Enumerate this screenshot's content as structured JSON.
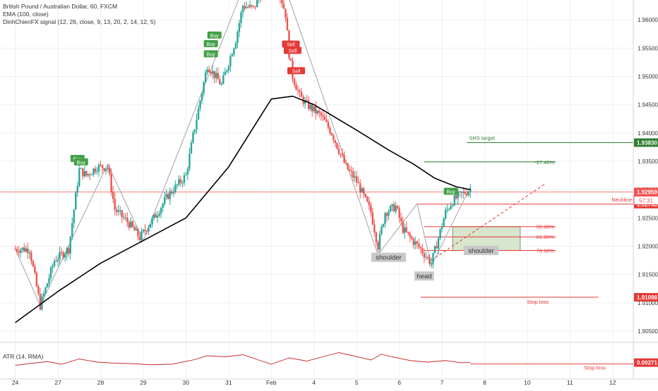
{
  "header": {
    "symbol_line": "British Pound / Australian Dollar, 60, FXCM",
    "indicator_ema": "EMA (100, close)",
    "indicator_signal": "DinhChienFX signal (12, 26, close, 9, 13, 20, 2, 14, 12, 5)",
    "indicator_atr": "ATR (14, RMA)"
  },
  "colors": {
    "bull": "#26a69a",
    "bear": "#ef5350",
    "ema": "#000000",
    "pattern_line": "#b0b0b0",
    "target": "#2e7d32",
    "stop": "#e53935",
    "current": "#ef5350",
    "neckline": "#e53935",
    "entry_zone": "#d7e6cc",
    "buy_label": "#43a047",
    "sell_label": "#e53935"
  },
  "chart_data": {
    "type": "candlestick",
    "x_ticks": [
      {
        "label": "24",
        "x": 0
      },
      {
        "label": "27",
        "x": 24
      },
      {
        "label": "28",
        "x": 48
      },
      {
        "label": "29",
        "x": 72
      },
      {
        "label": "30",
        "x": 96
      },
      {
        "label": "31",
        "x": 120
      },
      {
        "label": "Feb",
        "x": 144
      },
      {
        "label": "4",
        "x": 168
      },
      {
        "label": "5",
        "x": 192
      },
      {
        "label": "6",
        "x": 216
      },
      {
        "label": "7",
        "x": 240
      },
      {
        "label": "8",
        "x": 264
      },
      {
        "label": "10",
        "x": 288
      },
      {
        "label": "11",
        "x": 312
      },
      {
        "label": "12",
        "x": 336
      }
    ],
    "x_range": [
      -8.6,
      347.6
    ],
    "price_axis": {
      "range": [
        1.9035,
        1.9635
      ],
      "ticks": [
        "1.90500",
        "1.91000",
        "1.91500",
        "1.92000",
        "1.92500",
        "1.93000",
        "1.93500",
        "1.94000",
        "1.94500",
        "1.95000",
        "1.95500",
        "1.96000"
      ]
    },
    "price_path": [
      [
        0,
        1.9195
      ],
      [
        8,
        1.9195
      ],
      [
        14,
        1.9095
      ],
      [
        22,
        1.9175
      ],
      [
        30,
        1.9195
      ],
      [
        36,
        1.9335
      ],
      [
        40,
        1.9325
      ],
      [
        46,
        1.934
      ],
      [
        52,
        1.934
      ],
      [
        56,
        1.9265
      ],
      [
        64,
        1.924
      ],
      [
        70,
        1.9215
      ],
      [
        78,
        1.925
      ],
      [
        86,
        1.929
      ],
      [
        96,
        1.9325
      ],
      [
        100,
        1.9395
      ],
      [
        108,
        1.952
      ],
      [
        116,
        1.9485
      ],
      [
        124,
        1.9565
      ],
      [
        128,
        1.9625
      ],
      [
        134,
        1.962
      ],
      [
        140,
        1.9655
      ],
      [
        148,
        1.9655
      ],
      [
        152,
        1.961
      ],
      [
        154,
        1.954
      ],
      [
        156,
        1.95
      ],
      [
        160,
        1.9465
      ],
      [
        164,
        1.945
      ],
      [
        172,
        1.943
      ],
      [
        178,
        1.94
      ],
      [
        186,
        1.934
      ],
      [
        192,
        1.9315
      ],
      [
        200,
        1.926
      ],
      [
        204,
        1.92
      ],
      [
        208,
        1.926
      ],
      [
        214,
        1.927
      ],
      [
        218,
        1.923
      ],
      [
        222,
        1.9215
      ],
      [
        228,
        1.9195
      ],
      [
        234,
        1.917
      ],
      [
        238,
        1.9215
      ],
      [
        242,
        1.926
      ],
      [
        246,
        1.928
      ],
      [
        250,
        1.929
      ],
      [
        256,
        1.93
      ]
    ],
    "ema_path": [
      [
        0,
        1.9065
      ],
      [
        24,
        1.912
      ],
      [
        48,
        1.917
      ],
      [
        72,
        1.921
      ],
      [
        96,
        1.925
      ],
      [
        120,
        1.934
      ],
      [
        136,
        1.942
      ],
      [
        144,
        1.946
      ],
      [
        156,
        1.9465
      ],
      [
        168,
        1.945
      ],
      [
        192,
        1.9405
      ],
      [
        210,
        1.937
      ],
      [
        224,
        1.9345
      ],
      [
        236,
        1.932
      ],
      [
        248,
        1.9305
      ],
      [
        256,
        1.93
      ]
    ],
    "pattern_zigzag": [
      [
        0,
        1.9195
      ],
      [
        14,
        1.9095
      ],
      [
        52,
        1.9345
      ],
      [
        72,
        1.921
      ],
      [
        128,
        1.9655
      ],
      [
        152,
        1.9655
      ],
      [
        204,
        1.9185
      ],
      [
        226,
        1.9275
      ],
      [
        234,
        1.9165
      ],
      [
        256,
        1.9305
      ]
    ],
    "neckline_dashed": [
      [
        234,
        1.9175
      ],
      [
        298,
        1.931
      ]
    ],
    "horizontal_levels": [
      {
        "name": "shs-target",
        "label": "SHS target",
        "price": 1.9383,
        "price_label": "1.93830",
        "x_from": 254,
        "color": "#2e7d32",
        "text_color": "#2e7d32"
      },
      {
        "name": "fib-27",
        "label": "-27.40%",
        "price": 1.9349,
        "x_from": 230,
        "x_to": 304,
        "color": "#2e7d32",
        "text_color": "#2e7d32"
      },
      {
        "name": "current-price",
        "label": "",
        "price": 1.92959,
        "price_label": "1.92959",
        "x_from": -9,
        "color": "#ef5350",
        "thin": true
      },
      {
        "name": "neckline",
        "label": "Neckline",
        "price": 1.92743,
        "price_label": "1.92743",
        "x_from": 226,
        "color": "#e53935",
        "text_color": "#e53935"
      },
      {
        "name": "fib-50",
        "label": "50.00%",
        "price": 1.92345,
        "x_from": 230,
        "x_to": 304,
        "color": "#e53935",
        "text_color": "#e53935"
      },
      {
        "name": "fib-618",
        "label": "61.80%",
        "price": 1.92165,
        "x_from": 230,
        "x_to": 304,
        "color": "#e53935",
        "text_color": "#e53935"
      },
      {
        "name": "fib-786",
        "label": "78.60%",
        "price": 1.91925,
        "x_from": 230,
        "x_to": 304,
        "color": "#e53935",
        "text_color": "#e53935"
      },
      {
        "name": "stop-loss",
        "label": "Stop loss",
        "price": 1.91098,
        "price_label": "1.91098",
        "x_from": 228,
        "x_to": 328,
        "color": "#e53935",
        "text_color": "#e53935"
      }
    ],
    "countdown_label": "57:31",
    "entry_zone": {
      "x_from": 246,
      "x_to": 284,
      "price_top": 1.92345,
      "price_bottom": 1.91925
    },
    "pattern_labels": [
      {
        "name": "left-shoulder",
        "text": "shoulder",
        "x": 210,
        "price": 1.9181
      },
      {
        "name": "head",
        "text": "head",
        "x": 230,
        "price": 1.9148
      },
      {
        "name": "right-shoulder",
        "text": "shoulder",
        "x": 262,
        "price": 1.9193
      }
    ],
    "signals": [
      {
        "text": "Buy",
        "type": "buy",
        "x": 35,
        "price": 1.9355
      },
      {
        "text": "Buy",
        "type": "buy",
        "x": 37,
        "price": 1.9349
      },
      {
        "text": "Buy",
        "type": "buy",
        "x": 112,
        "price": 1.9573
      },
      {
        "text": "Buy",
        "type": "buy",
        "x": 110,
        "price": 1.9558
      },
      {
        "text": "Buy",
        "type": "buy",
        "x": 110,
        "price": 1.954
      },
      {
        "text": "Sell",
        "type": "sell",
        "x": 154,
        "price": 1.9642
      },
      {
        "text": "Sell",
        "type": "sell",
        "x": 155,
        "price": 1.9557
      },
      {
        "text": "Sell",
        "type": "sell",
        "x": 156,
        "price": 1.9546
      },
      {
        "text": "Sell",
        "type": "sell",
        "x": 158,
        "price": 1.951
      },
      {
        "text": "Buy",
        "type": "buy",
        "x": 245,
        "price": 1.9297
      }
    ],
    "atr": {
      "range": [
        0,
        0.006
      ],
      "value_label": "0.00271",
      "stop_label": "Stop loss",
      "stop_value": 0.00245,
      "path": [
        [
          0,
          0.0022
        ],
        [
          10,
          0.0026
        ],
        [
          18,
          0.0029
        ],
        [
          26,
          0.0024
        ],
        [
          36,
          0.0034
        ],
        [
          46,
          0.0028
        ],
        [
          56,
          0.0026
        ],
        [
          66,
          0.0025
        ],
        [
          76,
          0.0023
        ],
        [
          88,
          0.0024
        ],
        [
          100,
          0.0032
        ],
        [
          108,
          0.004
        ],
        [
          118,
          0.0038
        ],
        [
          128,
          0.0042
        ],
        [
          136,
          0.0033
        ],
        [
          144,
          0.0024
        ],
        [
          154,
          0.0036
        ],
        [
          164,
          0.003
        ],
        [
          176,
          0.0041
        ],
        [
          182,
          0.0046
        ],
        [
          190,
          0.004
        ],
        [
          200,
          0.0032
        ],
        [
          206,
          0.0043
        ],
        [
          212,
          0.0038
        ],
        [
          222,
          0.0031
        ],
        [
          232,
          0.0028
        ],
        [
          242,
          0.0031
        ],
        [
          250,
          0.0027
        ],
        [
          256,
          0.00271
        ]
      ]
    }
  }
}
